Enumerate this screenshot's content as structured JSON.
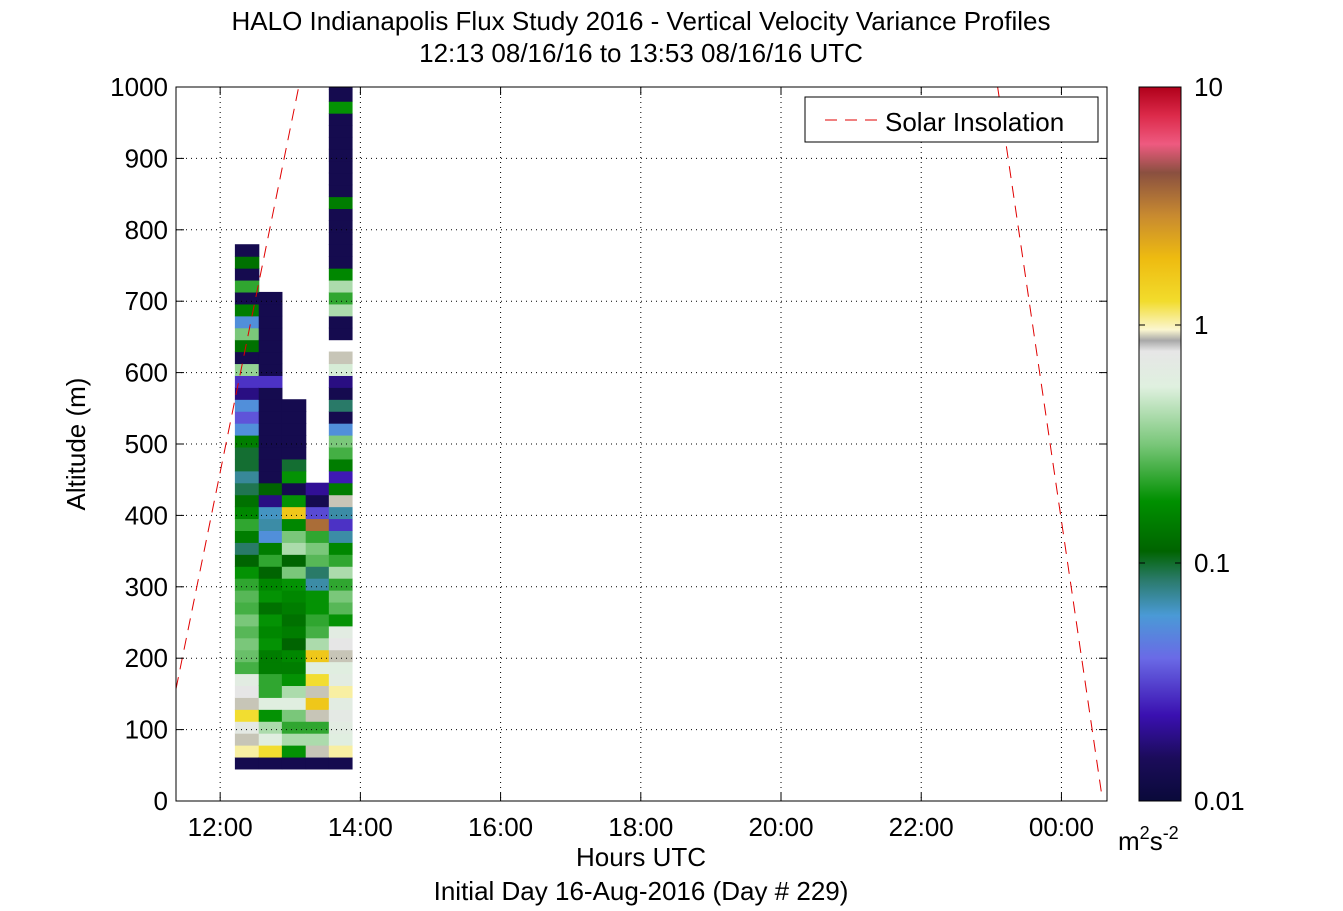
{
  "chart_data": {
    "type": "heatmap",
    "title": "HALO Indianapolis Flux Study 2016 - Vertical Velocity Variance Profiles",
    "subtitle": "12:13 08/16/16 to 13:53 08/16/16  UTC",
    "xlabel": "Hours UTC",
    "xlabel2": "Initial Day 16-Aug-2016 (Day # 229)",
    "ylabel": "Altitude (m)",
    "xlim": [
      11.37,
      24.65
    ],
    "ylim": [
      0,
      1000
    ],
    "grid": true,
    "x_ticks": [
      12,
      14,
      16,
      18,
      20,
      22,
      24
    ],
    "x_tick_labels": [
      "12:00",
      "14:00",
      "16:00",
      "18:00",
      "20:00",
      "22:00",
      "00:00"
    ],
    "y_ticks": [
      0,
      100,
      200,
      300,
      400,
      500,
      600,
      700,
      800,
      900,
      1000
    ],
    "y_tick_labels": [
      "0",
      "100",
      "200",
      "300",
      "400",
      "500",
      "600",
      "700",
      "800",
      "900",
      "1000"
    ],
    "color_scale": "log",
    "colorbar_ticks": [
      0.01,
      0.1,
      1,
      10
    ],
    "colorbar_tick_labels": [
      "0.01",
      "0.1",
      "1",
      "10"
    ],
    "colorbar_unit": "m",
    "colorbar_unit_sup1": "2",
    "colorbar_unit_mid": "s",
    "colorbar_unit_sup2": "-2",
    "legend": {
      "label": "Solar Insolation",
      "position": "top-right",
      "color": "#e00000"
    },
    "solar_insolation": [
      {
        "x": 11.37,
        "y": 157
      },
      {
        "x": 13.12,
        "y": 1000
      },
      {
        "x": 23.09,
        "y": 1000
      },
      {
        "x": 24.57,
        "y": 12
      }
    ],
    "z_bin_height": 16.7,
    "profiles": [
      {
        "x_start": 12.21,
        "x_end": 12.55,
        "z_start": 45,
        "values": [
          0.012,
          0.22,
          0.2,
          0.17,
          0.25,
          0.2,
          0.18,
          0.16,
          0.085,
          0.095,
          0.1,
          0.09,
          0.1,
          0.085,
          0.09,
          0.08,
          0.07,
          0.05,
          0.04,
          0.06,
          0.08,
          0.065,
          0.055,
          0.042,
          0.036,
          0.045,
          0.045,
          0.06,
          0.03,
          0.023,
          0.03,
          0.015,
          0.02,
          0.11,
          0.012,
          0.055,
          0.1,
          0.03,
          0.06,
          0.012,
          0.08,
          0.012,
          0.055,
          0.012
        ]
      },
      {
        "x_start": 12.55,
        "x_end": 12.88,
        "z_start": 45,
        "values": [
          0.012,
          0.25,
          0.15,
          0.12,
          0.07,
          0.15,
          0.08,
          0.08,
          0.06,
          0.06,
          0.07,
          0.065,
          0.07,
          0.055,
          0.07,
          0.065,
          0.05,
          0.08,
          0.06,
          0.03,
          0.035,
          0.033,
          0.015,
          0.05,
          0.012,
          0.012,
          0.012,
          0.012,
          0.012,
          0.012,
          0.012,
          0.012,
          0.02,
          0.012,
          0.012,
          0.012,
          0.012,
          0.012,
          0.012,
          0.012
        ]
      },
      {
        "x_start": 12.88,
        "x_end": 13.22,
        "z_start": 45,
        "values": [
          0.012,
          0.07,
          0.12,
          0.08,
          0.1,
          0.15,
          0.12,
          0.07,
          0.06,
          0.065,
          0.05,
          0.06,
          0.055,
          0.06,
          0.065,
          0.07,
          0.1,
          0.05,
          0.12,
          0.1,
          0.065,
          0.3,
          0.07,
          0.012,
          0.07,
          0.045,
          0.012,
          0.012,
          0.012,
          0.012,
          0.012
        ]
      },
      {
        "x_start": 13.22,
        "x_end": 13.55,
        "z_start": 45,
        "values": [
          0.012,
          0.2,
          0.12,
          0.08,
          0.2,
          0.3,
          0.2,
          0.25,
          0.15,
          0.3,
          0.12,
          0.085,
          0.08,
          0.07,
          0.07,
          0.035,
          0.04,
          0.09,
          0.1,
          0.08,
          0.5,
          0.022,
          0.012,
          0.016
        ]
      },
      {
        "x_start": 13.55,
        "x_end": 13.88,
        "z_start": 45,
        "values": [
          0.012,
          0.22,
          0.15,
          0.16,
          0.17,
          0.16,
          0.22,
          0.16,
          0.15,
          0.2,
          0.18,
          0.16,
          0.07,
          0.09,
          0.1,
          0.08,
          0.12,
          0.08,
          0.065,
          0.035,
          0.02,
          0.035,
          0.2,
          0.06,
          0.018,
          0.06,
          0.085,
          0.1,
          0.03,
          0.012,
          0.04,
          0.012,
          0.015,
          0.14,
          0.2,
          null,
          0.012,
          0.012,
          0.12,
          0.08,
          0.12,
          0.065,
          0.012,
          0.012,
          0.012,
          0.012,
          0.012,
          0.06,
          0.012,
          0.012,
          0.012,
          0.012,
          0.012,
          0.012,
          0.012,
          0.07,
          0.012,
          0.012,
          0.012,
          null,
          0.012,
          0.012,
          0.06
        ]
      }
    ]
  }
}
